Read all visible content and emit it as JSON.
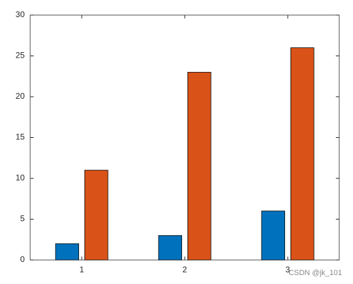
{
  "chart_data": {
    "type": "bar",
    "x": [
      1,
      2,
      3
    ],
    "xlim": [
      0.5,
      3.5
    ],
    "xticks": [
      1,
      2,
      3
    ],
    "ylim": [
      0,
      30
    ],
    "yticks": [
      0,
      5,
      10,
      15,
      20,
      25,
      30
    ],
    "series": [
      {
        "color": "#0072bd",
        "values": [
          2,
          3,
          6
        ]
      },
      {
        "color": "#d95319",
        "values": [
          11,
          23,
          26
        ]
      }
    ],
    "box": true,
    "watermark": "CSDN @jk_101"
  }
}
